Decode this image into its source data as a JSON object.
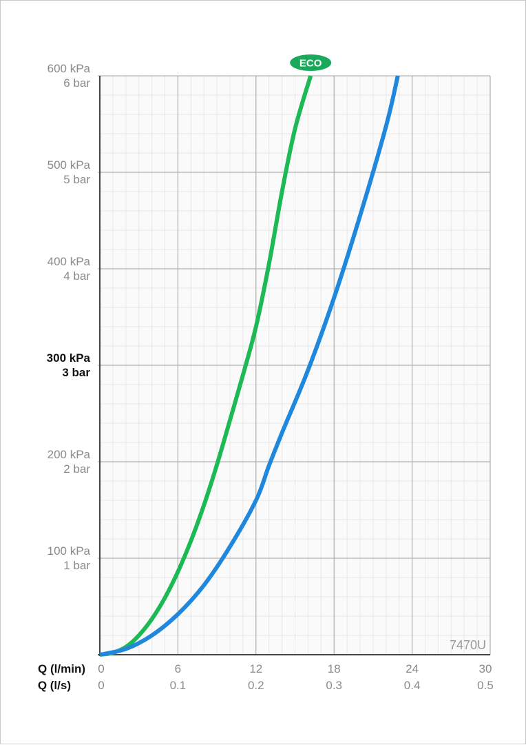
{
  "chart_data": {
    "type": "line",
    "model_label": "7470U",
    "xlim": [
      0,
      30
    ],
    "ylim": [
      0,
      600
    ],
    "grid": true,
    "x_ticks": [
      {
        "value": 0,
        "lmin": "0",
        "ls": "0"
      },
      {
        "value": 6,
        "lmin": "6",
        "ls": "0.1"
      },
      {
        "value": 12,
        "lmin": "12",
        "ls": "0.2"
      },
      {
        "value": 18,
        "lmin": "18",
        "ls": "0.3"
      },
      {
        "value": 24,
        "lmin": "24",
        "ls": "0.4"
      },
      {
        "value": 30,
        "lmin": "30",
        "ls": "0.5"
      }
    ],
    "x_label_lmin": "Q (l/min)",
    "x_label_ls": "Q (l/s)",
    "y_ticks": [
      {
        "value": 600,
        "kpa": "600 kPa",
        "bar": "6 bar",
        "bold": false
      },
      {
        "value": 500,
        "kpa": "500 kPa",
        "bar": "5 bar",
        "bold": false
      },
      {
        "value": 400,
        "kpa": "400 kPa",
        "bar": "4 bar",
        "bold": false
      },
      {
        "value": 300,
        "kpa": "300 kPa",
        "bar": "3 bar",
        "bold": true
      },
      {
        "value": 200,
        "kpa": "200 kPa",
        "bar": "2 bar",
        "bold": false
      },
      {
        "value": 100,
        "kpa": "100 kPa",
        "bar": "1 bar",
        "bold": false
      }
    ],
    "series": [
      {
        "label": "ECO",
        "color": "#1db954",
        "points": [
          [
            0,
            0
          ],
          [
            1,
            2
          ],
          [
            2,
            8
          ],
          [
            3,
            20
          ],
          [
            4,
            37
          ],
          [
            5,
            59
          ],
          [
            6,
            86
          ],
          [
            7,
            118
          ],
          [
            8,
            155
          ],
          [
            9,
            197
          ],
          [
            10,
            243
          ],
          [
            11,
            290
          ],
          [
            12,
            340
          ],
          [
            13,
            405
          ],
          [
            14,
            480
          ],
          [
            15,
            545
          ],
          [
            16.2,
            600
          ]
        ]
      },
      {
        "label": "",
        "color": "#1f88dd",
        "points": [
          [
            0,
            0
          ],
          [
            2,
            6
          ],
          [
            4,
            20
          ],
          [
            6,
            42
          ],
          [
            8,
            72
          ],
          [
            10,
            112
          ],
          [
            12,
            160
          ],
          [
            13,
            196
          ],
          [
            14,
            230
          ],
          [
            16,
            295
          ],
          [
            18,
            370
          ],
          [
            20,
            455
          ],
          [
            22,
            548
          ],
          [
            22.9,
            600
          ]
        ]
      }
    ],
    "colors": {
      "grid_minor": "#e8e8e8",
      "grid_major": "#9c9c9c",
      "axis": "#444444",
      "eco_badge": "#1aa85a"
    }
  }
}
